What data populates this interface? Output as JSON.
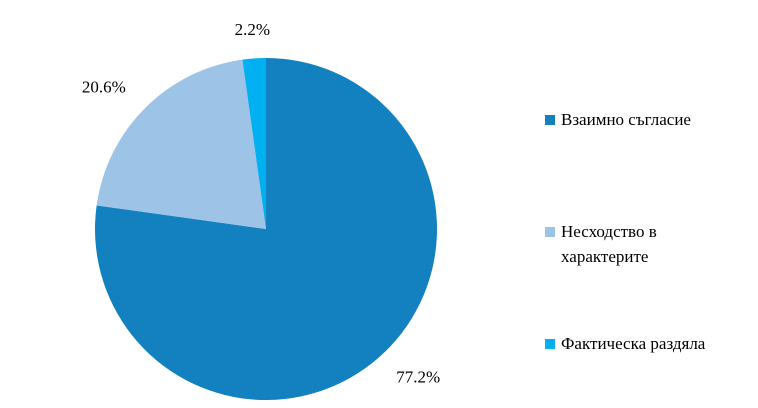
{
  "chart_data": {
    "type": "pie",
    "categories": [
      "Взаимно съгласие",
      "Несходство в характерите",
      "Фактическа раздяла"
    ],
    "values": [
      77.2,
      20.6,
      2.2
    ],
    "value_labels": [
      "77.2%",
      "20.6%",
      "2.2%"
    ],
    "colors": [
      "#1380c0",
      "#9dc3e6",
      "#00b0f0"
    ],
    "legend": "right"
  }
}
